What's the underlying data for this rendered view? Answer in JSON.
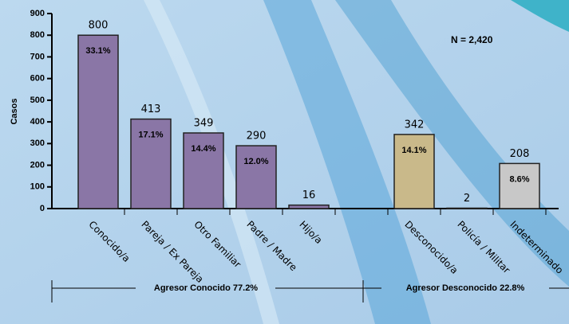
{
  "chart_data": {
    "type": "bar",
    "y_label": "Casos",
    "annotation": "N = 2,420",
    "categories": [
      "Conocido/a",
      "Pareja / Ex Pareja",
      "Otro Familiar",
      "Padre / Madre",
      "Hijo/a",
      null,
      "Desconocido/a",
      "Policía / Militar",
      "Indeterminado"
    ],
    "values": [
      800,
      413,
      349,
      290,
      16,
      null,
      342,
      2,
      208
    ],
    "percent_labels": [
      "33.1%",
      "17.1%",
      "14.4%",
      "12.0%",
      null,
      null,
      "14.1%",
      null,
      "8.6%"
    ],
    "colors": [
      "#8a76a6",
      "#8a76a6",
      "#8a76a6",
      "#8a76a6",
      "#8a76a6",
      null,
      "#c9b98a",
      "#a8a8a8",
      "#c8c8c8"
    ],
    "ylim": [
      0,
      900
    ],
    "yticks": [
      0,
      100,
      200,
      300,
      400,
      500,
      600,
      700,
      800,
      900
    ],
    "groups": [
      "Agresor Conocido 77.2%",
      "Agresor Desconocido 22.8%"
    ]
  }
}
